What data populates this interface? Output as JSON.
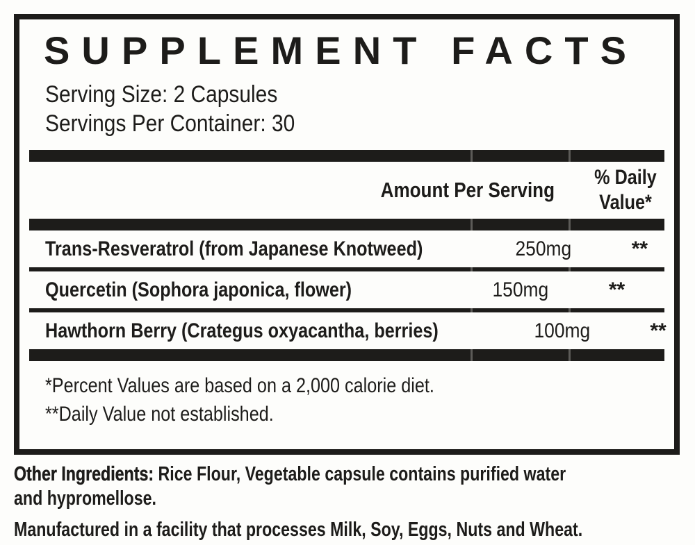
{
  "panel": {
    "title": "SUPPLEMENT FACTS",
    "serving_size": "Serving Size: 2 Capsules",
    "servings_per_container": "Servings Per Container: 30",
    "columns": {
      "amount_header": "Amount Per Serving",
      "daily_value_header": "% Daily Value*"
    },
    "rows": [
      {
        "name": "Trans-Resveratrol (from Japanese Knotweed)",
        "amount": "250mg",
        "daily_value": "**"
      },
      {
        "name": "Quercetin (Sophora japonica, flower)",
        "amount": "150mg",
        "daily_value": "**"
      },
      {
        "name": "Hawthorn Berry (Crategus oxyacantha, berries)",
        "amount": "100mg",
        "daily_value": "**"
      }
    ],
    "footnotes": [
      "*Percent Values are based on a 2,000 calorie diet.",
      "**Daily Value not established."
    ]
  },
  "bottom": {
    "other_ingredients_label": "Other Ingredients:",
    "other_ingredients_line1": "Rice Flour, Vegetable capsule contains purified water",
    "other_ingredients_line2": "and hypromellose.",
    "allergen_statement": "Manufactured in a facility that processes Milk, Soy, Eggs, Nuts and Wheat."
  },
  "colors": {
    "ink": "#1d1c1a",
    "paper": "#fdfdfb"
  }
}
